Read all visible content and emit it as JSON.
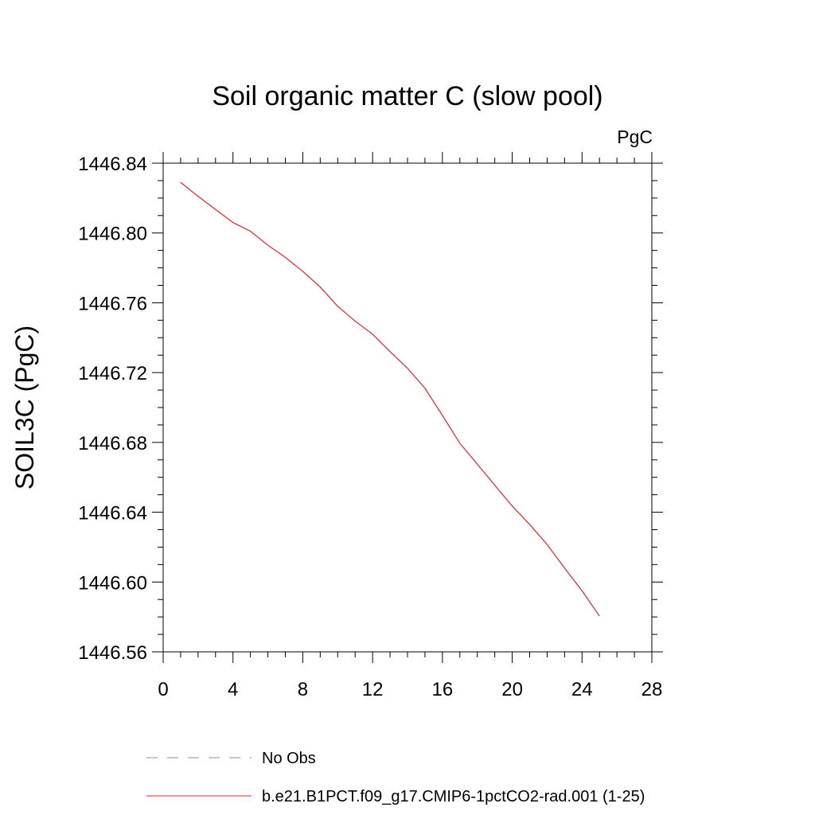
{
  "chart_data": {
    "type": "line",
    "title": "Soil organic matter C (slow pool)",
    "units_label": "PgC",
    "xlabel": "",
    "ylabel": "SOIL3C  (PgC)",
    "xlim": [
      0,
      28
    ],
    "ylim": [
      1446.56,
      1446.84
    ],
    "x_ticks": [
      "0",
      "4",
      "8",
      "12",
      "16",
      "20",
      "24",
      "28"
    ],
    "y_ticks": [
      "1446.56",
      "1446.60",
      "1446.64",
      "1446.68",
      "1446.72",
      "1446.76",
      "1446.80",
      "1446.84"
    ],
    "grid": false,
    "legend_position": "bottom",
    "series": [
      {
        "name": "No Obs",
        "color": "#8a86c4",
        "dash": "dashed",
        "x": [],
        "y": []
      },
      {
        "name": "b.e21.B1PCT.f09_g17.CMIP6-1pctCO2-rad.001 (1-25)",
        "color": "#e8202a",
        "dash": "solid",
        "x": [
          1,
          2,
          3,
          4,
          5,
          6,
          7,
          8,
          9,
          10,
          11,
          12,
          13,
          14,
          15,
          16,
          17,
          18,
          19,
          20,
          21,
          22,
          23,
          24,
          25
        ],
        "y": [
          1446.829,
          1446.821,
          1446.8135,
          1446.806,
          1446.801,
          1446.793,
          1446.786,
          1446.778,
          1446.769,
          1446.758,
          1446.7495,
          1446.742,
          1446.732,
          1446.7225,
          1446.711,
          1446.6955,
          1446.6795,
          1446.6675,
          1446.6555,
          1446.6435,
          1446.633,
          1446.6215,
          1446.608,
          1446.595,
          1446.5805
        ]
      }
    ]
  }
}
